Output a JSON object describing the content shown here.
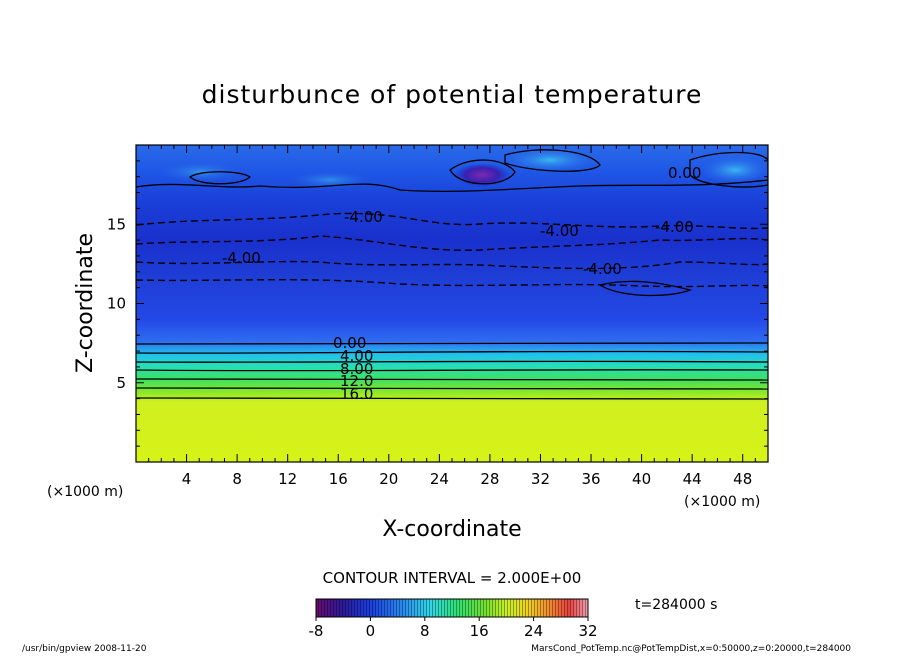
{
  "chart_data": {
    "type": "heatmap",
    "title": "disturbunce of potential temperature",
    "xlabel": "X-coordinate",
    "ylabel": "Z-coordinate",
    "x_unit": "(×1000 m)",
    "xlim": [
      0,
      50
    ],
    "ylim": [
      0,
      20
    ],
    "x_ticks": [
      "4",
      "8",
      "12",
      "16",
      "20",
      "24",
      "28",
      "32",
      "36",
      "40",
      "44",
      "48"
    ],
    "y_ticks": [
      "5",
      "10",
      "15"
    ],
    "contour_interval_text": "CONTOUR INTERVAL = 2.000E+00",
    "colorbar": {
      "min": -8,
      "max": 32,
      "tick_labels": [
        "-8",
        "0",
        "8",
        "16",
        "24",
        "32"
      ]
    },
    "contour_labels": [
      "0.00",
      "4.00",
      "8.00",
      "12.0",
      "16.0",
      "-4.00",
      "-4.00",
      "-4.00",
      "-4.00",
      "-4.00",
      "0.00"
    ],
    "field_profile_by_height": [
      {
        "z": 0.5,
        "value": 20
      },
      {
        "z": 3.5,
        "value": 19
      },
      {
        "z": 4.2,
        "value": 16
      },
      {
        "z": 5.0,
        "value": 12
      },
      {
        "z": 5.8,
        "value": 8
      },
      {
        "z": 6.6,
        "value": 4
      },
      {
        "z": 7.4,
        "value": 0
      },
      {
        "z": 9.0,
        "value": -2
      },
      {
        "z": 11.5,
        "value": -3
      },
      {
        "z": 13.5,
        "value": -4.5
      },
      {
        "z": 15.5,
        "value": -3.5
      },
      {
        "z": 17.5,
        "value": -2
      },
      {
        "z": 19.5,
        "value": -2
      }
    ],
    "time_label": "t=284000 s"
  },
  "footer": {
    "left": "/usr/bin/gpview   2008-11-20",
    "right": "MarsCond_PotTemp.nc@PotTempDist,x=0:50000,z=0:20000,t=284000"
  }
}
